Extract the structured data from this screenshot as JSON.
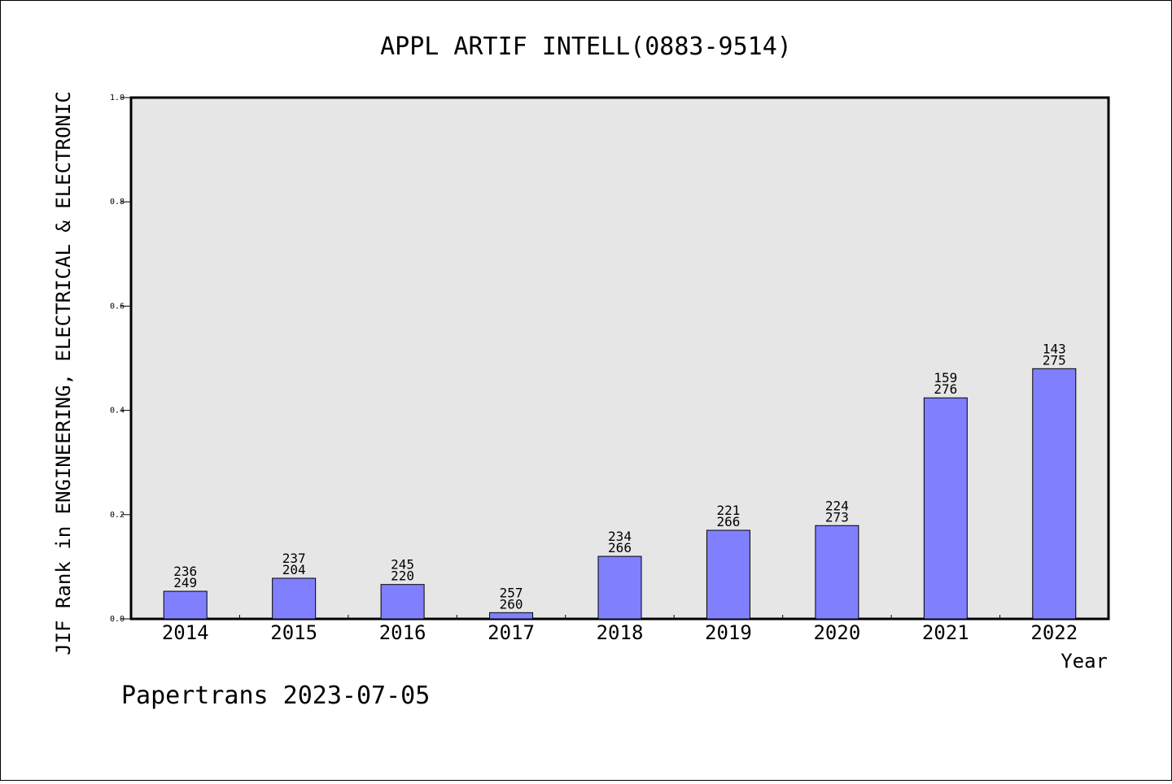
{
  "chart_data": {
    "type": "bar",
    "title": "APPL ARTIF INTELL(0883-9514)",
    "xlabel": "Year",
    "ylabel": "JIF Rank in ENGINEERING, ELECTRICAL & ELECTRONIC",
    "ylim": [
      0,
      1.0
    ],
    "yticks": [
      "0.0",
      "0.2",
      "0.4",
      "0.6",
      "0.8",
      "1.0"
    ],
    "grid": false,
    "plot_background": "#e6e6e6",
    "bar_color": "#8080ff",
    "categories": [
      "2014",
      "2015",
      "2016",
      "2017",
      "2018",
      "2019",
      "2020",
      "2021",
      "2022"
    ],
    "values": [
      0.053,
      0.078,
      0.066,
      0.012,
      0.12,
      0.17,
      0.179,
      0.424,
      0.48
    ],
    "labels_top": [
      "236",
      "237",
      "245",
      "257",
      "234",
      "221",
      "224",
      "159",
      "143"
    ],
    "labels_bottom": [
      "249",
      "204",
      "220",
      "260",
      "266",
      "266",
      "273",
      "276",
      "275"
    ]
  },
  "credit": "Papertrans 2023-07-05"
}
